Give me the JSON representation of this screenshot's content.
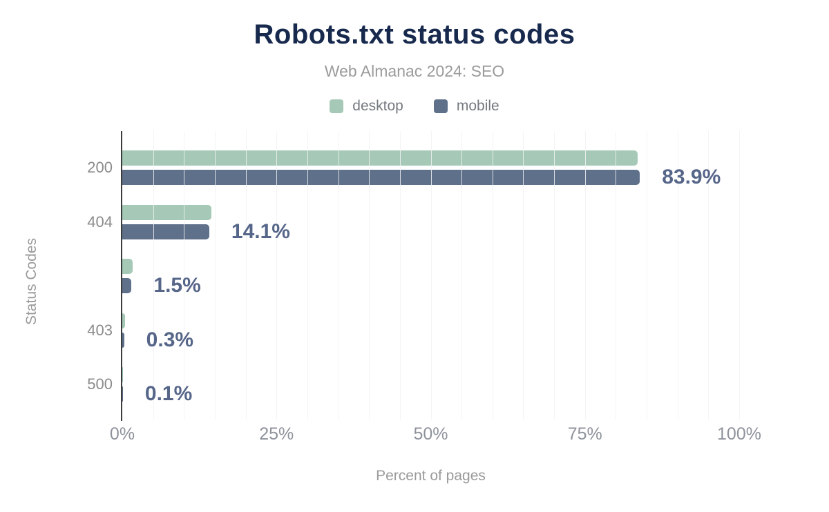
{
  "chart": {
    "title": "Robots.txt status codes",
    "subtitle": "Web Almanac 2024: SEO",
    "x_axis_title": "Percent of pages",
    "y_axis_title": "Status Codes"
  },
  "chart_data": {
    "type": "bar",
    "orientation": "horizontal",
    "title": "Robots.txt status codes",
    "subtitle": "Web Almanac 2024: SEO",
    "xlabel": "Percent of pages",
    "ylabel": "Status Codes",
    "xlim": [
      0,
      100
    ],
    "x_ticks": [
      {
        "label": "0%",
        "value": 0
      },
      {
        "label": "25%",
        "value": 25
      },
      {
        "label": "50%",
        "value": 50
      },
      {
        "label": "75%",
        "value": 75
      },
      {
        "label": "100%",
        "value": 100
      }
    ],
    "minor_gridline_step_percent": 5,
    "grid": "vertical-minor-over-bars",
    "legend_position": "top",
    "categories": [
      "200",
      "404",
      "",
      "403",
      "500"
    ],
    "series": [
      {
        "name": "desktop",
        "color": "#a5c9b6",
        "values": [
          83.5,
          14.5,
          1.7,
          0.4,
          0.1
        ]
      },
      {
        "name": "mobile",
        "color": "#5f708a",
        "values": [
          83.9,
          14.1,
          1.5,
          0.3,
          0.1
        ]
      }
    ],
    "data_labels": {
      "series": "mobile",
      "labels": [
        "83.9%",
        "14.1%",
        "1.5%",
        "0.3%",
        "0.1%"
      ]
    }
  },
  "colors": {
    "background": "#ffffff",
    "title_text": "#17294d",
    "subtitle_text": "#9b9b9b",
    "axis_title_text": "#9a9a9a",
    "category_text": "#8b8b8b",
    "x_tick_text": "#8e929b",
    "data_label_text": "#566689",
    "axis_line": "#3c3c3c",
    "gridline": "#f2f2f4"
  }
}
